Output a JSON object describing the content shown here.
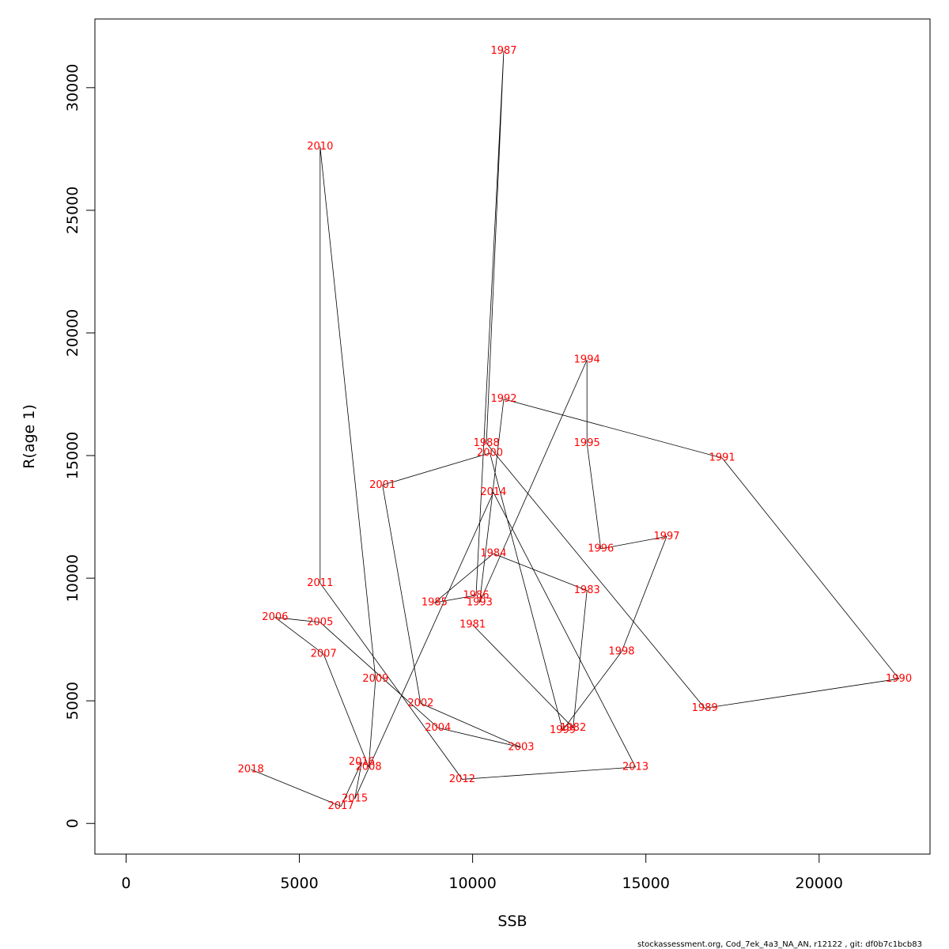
{
  "chart_data": {
    "type": "line",
    "xlabel": "SSB",
    "ylabel": "R(age 1)",
    "xlim": [
      -900,
      23200
    ],
    "ylim": [
      -1250,
      32800
    ],
    "x_ticks": [
      0,
      5000,
      10000,
      15000,
      20000
    ],
    "y_ticks": [
      0,
      5000,
      10000,
      15000,
      20000,
      25000,
      30000
    ],
    "grid": false,
    "label_color": "#ff0000",
    "line_color": "#000000",
    "series": [
      {
        "points": [
          {
            "year": "1981",
            "x": 10000,
            "y": 8100
          },
          {
            "year": "1982",
            "x": 12900,
            "y": 3900
          },
          {
            "year": "1983",
            "x": 13300,
            "y": 9500
          },
          {
            "year": "1984",
            "x": 10600,
            "y": 11000
          },
          {
            "year": "1985",
            "x": 8900,
            "y": 9000
          },
          {
            "year": "1986",
            "x": 10100,
            "y": 9300
          },
          {
            "year": "1987",
            "x": 10900,
            "y": 31500
          },
          {
            "year": "1988",
            "x": 10400,
            "y": 15500
          },
          {
            "year": "1989",
            "x": 16700,
            "y": 4700
          },
          {
            "year": "1990",
            "x": 22300,
            "y": 5900
          },
          {
            "year": "1991",
            "x": 17200,
            "y": 14900
          },
          {
            "year": "1992",
            "x": 10900,
            "y": 17300
          },
          {
            "year": "1993",
            "x": 10200,
            "y": 9000
          },
          {
            "year": "1994",
            "x": 13300,
            "y": 18900
          },
          {
            "year": "1995",
            "x": 13300,
            "y": 15500
          },
          {
            "year": "1996",
            "x": 13700,
            "y": 11200
          },
          {
            "year": "1997",
            "x": 15600,
            "y": 11700
          },
          {
            "year": "1998",
            "x": 14300,
            "y": 7000
          },
          {
            "year": "1999",
            "x": 12600,
            "y": 3800
          },
          {
            "year": "2000",
            "x": 10500,
            "y": 15100
          },
          {
            "year": "2001",
            "x": 7400,
            "y": 13800
          },
          {
            "year": "2002",
            "x": 8500,
            "y": 4900
          },
          {
            "year": "2003",
            "x": 11400,
            "y": 3100
          },
          {
            "year": "2004",
            "x": 9000,
            "y": 3900
          },
          {
            "year": "2005",
            "x": 5600,
            "y": 8200
          },
          {
            "year": "2006",
            "x": 4300,
            "y": 8400
          },
          {
            "year": "2007",
            "x": 5700,
            "y": 6900
          },
          {
            "year": "2008",
            "x": 7000,
            "y": 2300
          },
          {
            "year": "2009",
            "x": 7200,
            "y": 5900
          },
          {
            "year": "2010",
            "x": 5600,
            "y": 27600
          },
          {
            "year": "2011",
            "x": 5600,
            "y": 9800
          },
          {
            "year": "2012",
            "x": 9700,
            "y": 1800
          },
          {
            "year": "2013",
            "x": 14700,
            "y": 2300
          },
          {
            "year": "2014",
            "x": 10600,
            "y": 13500
          },
          {
            "year": "2015",
            "x": 6600,
            "y": 1000
          },
          {
            "year": "2016",
            "x": 6800,
            "y": 2500
          },
          {
            "year": "2017",
            "x": 6200,
            "y": 700
          },
          {
            "year": "2018",
            "x": 3600,
            "y": 2200
          }
        ]
      }
    ]
  },
  "footer": "stockassessment.org, Cod_7ek_4a3_NA_AN, r12122 , git: df0b7c1bcb83"
}
